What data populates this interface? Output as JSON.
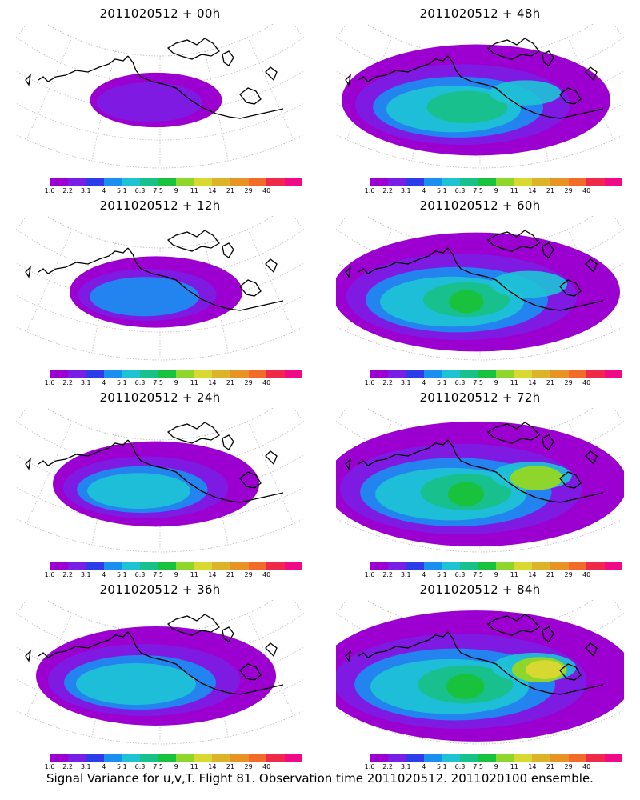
{
  "panels": [
    {
      "title": "2011020512 + 00h",
      "level": 0
    },
    {
      "title": "2011020512 + 48h",
      "level": 4
    },
    {
      "title": "2011020512 + 12h",
      "level": 1
    },
    {
      "title": "2011020512 + 60h",
      "level": 5
    },
    {
      "title": "2011020512 + 24h",
      "level": 2
    },
    {
      "title": "2011020512 + 72h",
      "level": 6
    },
    {
      "title": "2011020512 + 36h",
      "level": 3
    },
    {
      "title": "2011020512 + 84h",
      "level": 7
    }
  ],
  "colorbar": {
    "colors": [
      "#9b00d0",
      "#7a1ee6",
      "#2c3ce8",
      "#1a8ff0",
      "#1ec4d6",
      "#18c08a",
      "#18c23c",
      "#8fd62c",
      "#d8d832",
      "#dcb428",
      "#e89226",
      "#f06c28",
      "#f0284c",
      "#f00a8a"
    ],
    "labels": [
      "1.6",
      "2.2",
      "3.1",
      "4",
      "5.1",
      "6.3",
      "7.5",
      "9",
      "11",
      "14",
      "21",
      "29",
      "40"
    ]
  },
  "footer": "Signal Variance for u,v,T. Flight 81. Observation time 2011020512. 2011020100 ensemble."
}
